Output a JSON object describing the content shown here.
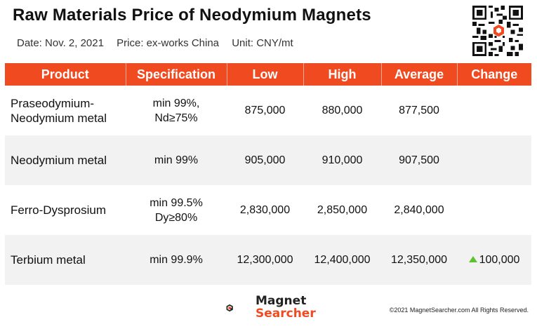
{
  "header": {
    "title": "Raw Materials Price of Neodymium Magnets",
    "date": "Date: Nov. 2, 2021",
    "price_basis": "Price: ex-works China",
    "unit": "Unit: CNY/mt"
  },
  "table": {
    "columns": [
      "Product",
      "Specification",
      "Low",
      "High",
      "Average",
      "Change"
    ],
    "rows": [
      {
        "product": "Praseodymium-\nNeodymium metal",
        "spec": "min 99%,\nNd≥75%",
        "low": "875,000",
        "high": "880,000",
        "average": "877,500",
        "change": ""
      },
      {
        "product": "Neodymium metal",
        "spec": "min 99%",
        "low": "905,000",
        "high": "910,000",
        "average": "907,500",
        "change": ""
      },
      {
        "product": "Ferro-Dysprosium",
        "spec": "min 99.5%\nDy≥80%",
        "low": "2,830,000",
        "high": "2,850,000",
        "average": "2,840,000",
        "change": ""
      },
      {
        "product": "Terbium metal",
        "spec": "min 99.9%",
        "low": "12,300,000",
        "high": "12,400,000",
        "average": "12,350,000",
        "change": "100,000",
        "change_direction": "up"
      }
    ]
  },
  "footer": {
    "logo_line1": "Magnet",
    "logo_line2": "Searcher",
    "copyright": "©2021 MagnetSearcher.com All Rights Reserved."
  },
  "colors": {
    "header_bg": "#f04a21",
    "row_shade": "#f2f2f2",
    "change_up": "#5ec22f"
  },
  "icons": {
    "qr": "qr-code-icon",
    "logo": "magnet-searcher-logo-icon",
    "change": "up-triangle-icon"
  }
}
